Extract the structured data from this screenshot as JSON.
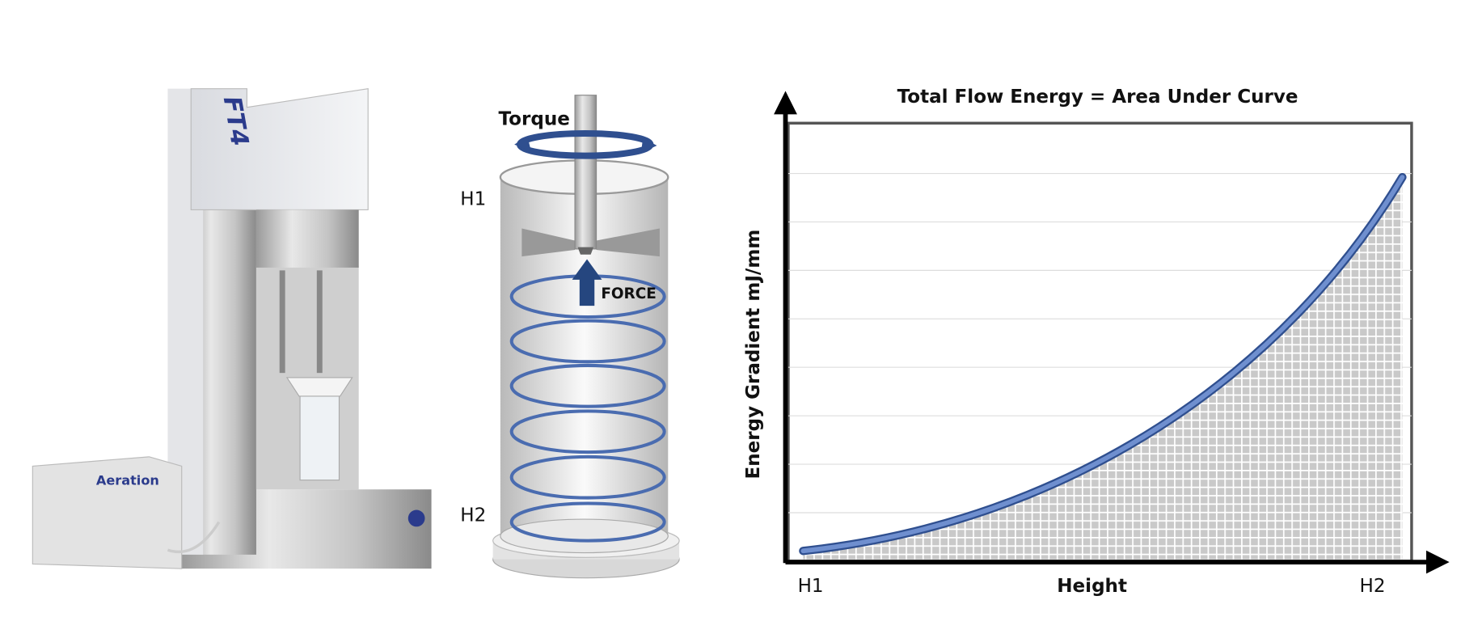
{
  "instrument": {
    "model": "FT4",
    "accessory": "Aeration"
  },
  "vessel": {
    "torque": "Torque",
    "force": "FORCE",
    "top": "H1",
    "bottom": "H2"
  },
  "graph": {
    "title": "Total Flow Energy = Area Under Curve",
    "y_label": "Energy Gradient mJ/mm",
    "x_label": "Height",
    "x_start": "H1",
    "x_end": "H2"
  }
}
